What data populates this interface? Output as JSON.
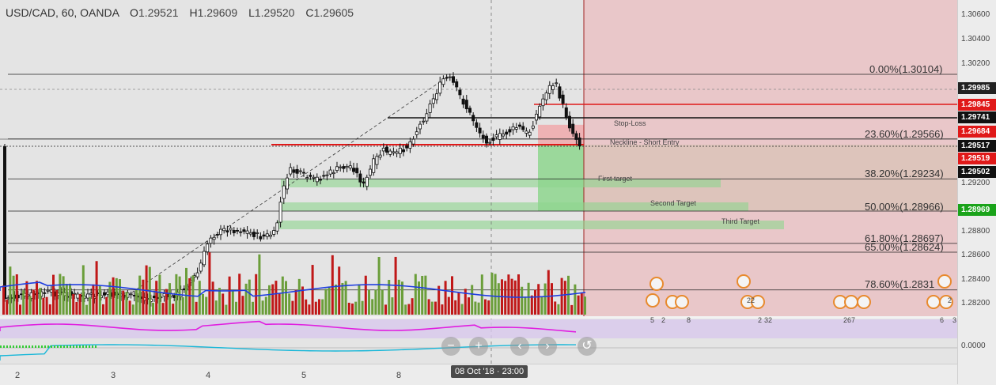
{
  "legend": {
    "symbol": "USD/CAD, 60, OANDA",
    "o_label": "O",
    "o": "1.29521",
    "h_label": "H",
    "h": "1.29609",
    "l_label": "L",
    "l": "1.29520",
    "c_label": "C",
    "c": "1.29605"
  },
  "fib_levels": [
    {
      "label": "0.00%(1.30104)",
      "price": 1.30104
    },
    {
      "label": "23.60%(1.29566)",
      "price": 1.29566
    },
    {
      "label": "38.20%(1.29234)",
      "price": 1.29234
    },
    {
      "label": "50.00%(1.28966)",
      "price": 1.28966
    },
    {
      "label": "61.80%(1.28697)",
      "price": 1.28697
    },
    {
      "label": "65.00%(1.28624)",
      "price": 1.28624
    },
    {
      "label": "78.60%(1.2831",
      "price": 1.2831
    }
  ],
  "zones": {
    "stop_loss": "Stop-Loss",
    "neckline": "Neckline - Short Entry",
    "first_target": "First target",
    "second_target": "Second Target",
    "third_target": "Third Target"
  },
  "price_axis": {
    "ticks": [
      "1.30600",
      "1.30400",
      "1.30200",
      "1.29200",
      "1.28800",
      "1.28600",
      "1.28400",
      "1.28200",
      "0.0000"
    ],
    "badges": [
      {
        "text": "1.29985",
        "color": "#222222"
      },
      {
        "text": "1.29845",
        "color": "#e01919"
      },
      {
        "text": "1.29741",
        "color": "#111111"
      },
      {
        "text": "1.29684",
        "color": "#e01919"
      },
      {
        "text": "1.29517",
        "color": "#111111"
      },
      {
        "text": "1.29519",
        "color": "#e01919"
      },
      {
        "text": "1.29502",
        "color": "#111111"
      },
      {
        "text": "1.28969",
        "color": "#1aa31a"
      }
    ]
  },
  "time_axis": {
    "ticks": [
      "2",
      "3",
      "4",
      "5",
      "8"
    ],
    "crosshair_date": "08 Oct '18 · 23:00"
  },
  "nav_buttons": {
    "zoom_out": "−",
    "zoom_in": "+",
    "scroll_left": "‹",
    "scroll_right": "›",
    "reset": "↺"
  },
  "events": [
    "22",
    "5",
    "2",
    "8",
    "2",
    "32",
    "267",
    "2",
    "6",
    "3"
  ],
  "colors": {
    "bull_volume": "#6b9e3a",
    "bear_volume": "#c01818",
    "ma_blue": "#1f3ee0",
    "rsi_magenta": "#e01ee0",
    "stop_zone": "#f0a5a8",
    "target_zone": "#8ed68e"
  },
  "chart_data": {
    "type": "candlestick",
    "symbol": "USD/CAD",
    "timeframe": "60",
    "last_ohlc": {
      "open": 1.29521,
      "high": 1.29609,
      "low": 1.2952,
      "close": 1.29605
    },
    "ylim": [
      1.2815,
      1.307
    ]
  }
}
